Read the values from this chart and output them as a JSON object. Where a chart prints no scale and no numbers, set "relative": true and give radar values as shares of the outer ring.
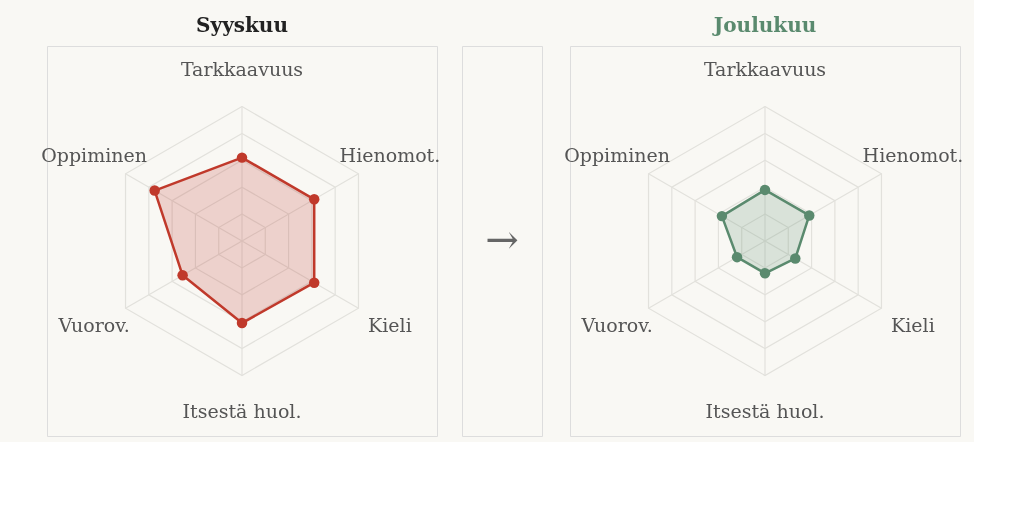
{
  "chart_data": [
    {
      "type": "radar",
      "title": "Syyskuu",
      "categories": [
        "Tarkkaavuus",
        "Hienomot.",
        "Kieli",
        "Itsestä huol.",
        "Vuorov.",
        "Oppiminen"
      ],
      "relative": true,
      "grid": true,
      "marker": "circle",
      "annotations": [
        "→"
      ],
      "series": [
        {
          "color": "#c0392b",
          "values": [
            0.62,
            0.62,
            0.62,
            0.61,
            0.51,
            0.75
          ]
        }
      ]
    },
    {
      "type": "radar",
      "title": "Joulukuu",
      "categories": [
        "Tarkkaavuus",
        "Hienomot.",
        "Kieli",
        "Itsestä huol.",
        "Vuorov.",
        "Oppiminen"
      ],
      "relative": true,
      "grid": true,
      "marker": "circle",
      "series": [
        {
          "color": "#5a8a6e",
          "values": [
            0.38,
            0.38,
            0.26,
            0.24,
            0.24,
            0.37
          ]
        }
      ]
    }
  ]
}
